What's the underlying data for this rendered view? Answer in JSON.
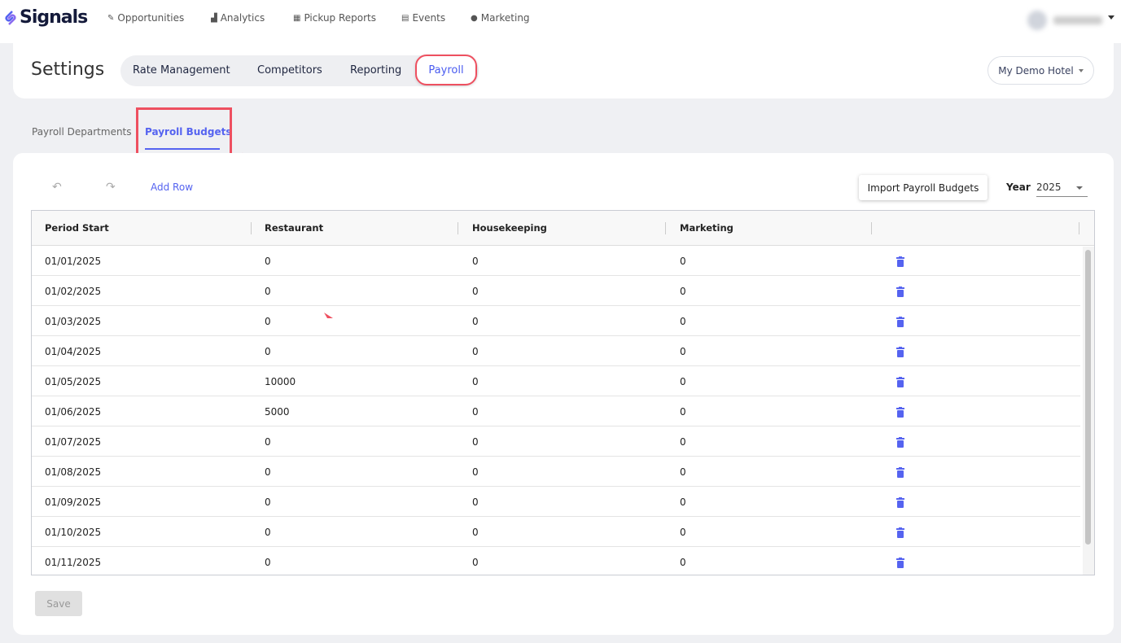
{
  "brand": "Signals",
  "nav": [
    {
      "label": "Opportunities",
      "icon": "tag-icon"
    },
    {
      "label": "Analytics",
      "icon": "chart-icon"
    },
    {
      "label": "Pickup Reports",
      "icon": "grid-icon"
    },
    {
      "label": "Events",
      "icon": "calendar-icon"
    },
    {
      "label": "Marketing",
      "icon": "user-icon"
    }
  ],
  "header": {
    "title": "Settings",
    "tabs": [
      "Rate Management",
      "Competitors",
      "Reporting",
      "Payroll"
    ],
    "active_tab": "Payroll",
    "hotel": "My Demo Hotel"
  },
  "subtabs": [
    "Payroll Departments",
    "Payroll Budgets"
  ],
  "toolbar": {
    "add_row": "Add Row",
    "import": "Import Payroll Budgets",
    "year_label": "Year",
    "year": "2025"
  },
  "table": {
    "columns": [
      "Period Start",
      "Restaurant",
      "Housekeeping",
      "Marketing"
    ],
    "rows": [
      [
        "01/01/2025",
        "0",
        "0",
        "0"
      ],
      [
        "01/02/2025",
        "0",
        "0",
        "0"
      ],
      [
        "01/03/2025",
        "0",
        "0",
        "0"
      ],
      [
        "01/04/2025",
        "0",
        "0",
        "0"
      ],
      [
        "01/05/2025",
        "10000",
        "0",
        "0"
      ],
      [
        "01/06/2025",
        "5000",
        "0",
        "0"
      ],
      [
        "01/07/2025",
        "0",
        "0",
        "0"
      ],
      [
        "01/08/2025",
        "0",
        "0",
        "0"
      ],
      [
        "01/09/2025",
        "0",
        "0",
        "0"
      ],
      [
        "01/10/2025",
        "0",
        "0",
        "0"
      ],
      [
        "01/11/2025",
        "0",
        "0",
        "0"
      ]
    ]
  },
  "save": "Save",
  "colors": {
    "accent": "#5563f0",
    "highlight": "#ee5060"
  }
}
